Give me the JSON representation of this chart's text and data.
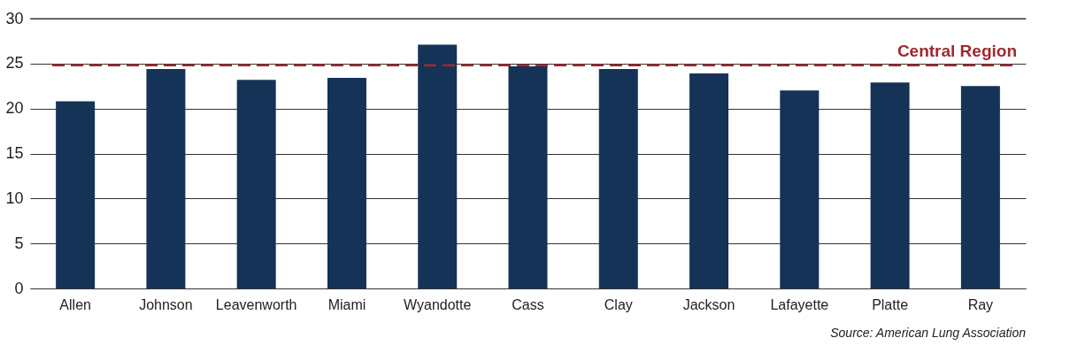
{
  "chart_data": {
    "type": "bar",
    "categories": [
      "Allen",
      "Johnson",
      "Leavenworth",
      "Miami",
      "Wyandotte",
      "Cass",
      "Clay",
      "Jackson",
      "Lafayette",
      "Platte",
      "Ray"
    ],
    "values": [
      20.8,
      24.4,
      23.2,
      23.4,
      27.1,
      24.7,
      24.4,
      23.9,
      22.0,
      22.9,
      22.5
    ],
    "color": "#153257",
    "ylim": [
      0,
      30
    ],
    "yticks": [
      0,
      5,
      10,
      15,
      20,
      25,
      30
    ],
    "grid": "y",
    "ref_lines": [
      {
        "axis": "y",
        "value": 24.8,
        "label": "Central Region",
        "color": "#a0282e",
        "line_style": "dashed"
      }
    ],
    "annotations": [
      "Source: American Lung Association"
    ]
  }
}
